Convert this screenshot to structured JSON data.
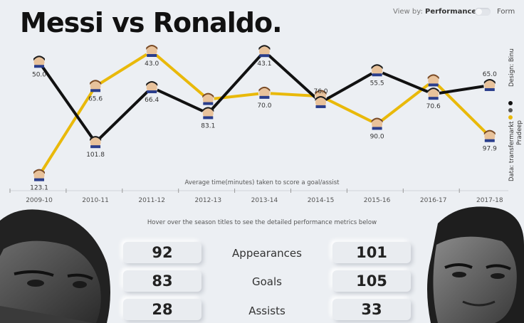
{
  "header": {
    "title": "Messi vs Ronaldo.",
    "view_by_label": "View by:",
    "option_performance": "Performance",
    "option_form": "Form"
  },
  "side": {
    "design": "Design: Binu",
    "data_source": "Data: transfermarkt",
    "legend": [
      {
        "name": "",
        "color": "#111111"
      },
      {
        "name": "Pradeep",
        "color": "#e9b90a"
      }
    ]
  },
  "colors": {
    "messi": "#e9b90a",
    "ronaldo": "#111111"
  },
  "chart_data": {
    "type": "line",
    "title": "Messi vs Ronaldo.",
    "xlabel": "Average time(minutes) taken to score a goal/assist",
    "ylabel": "",
    "y_inverted": true,
    "categories": [
      "2009-10",
      "2010-11",
      "2011-12",
      "2012-13",
      "2013-14",
      "2014-15",
      "2015-16",
      "2016-17",
      "2017-18"
    ],
    "series": [
      {
        "name": "",
        "color": "#111111",
        "values": [
          50.0,
          101.8,
          66.4,
          83.1,
          43.1,
          76.0,
          55.5,
          70.6,
          65.0
        ]
      },
      {
        "name": "",
        "color": "#e9b90a",
        "values": [
          123.1,
          65.6,
          43.0,
          null,
          70.0,
          null,
          90.0,
          null,
          97.9
        ]
      }
    ],
    "messi_hidden_points": [
      {
        "category": "2012-13",
        "value": 74
      },
      {
        "category": "2014-15",
        "value": 72
      },
      {
        "category": "2016-17",
        "value": 62
      }
    ]
  },
  "instructions": "Hover over the season titles to see the detailed performance metrics below",
  "stats": [
    {
      "label": "Appearances",
      "messi": "92",
      "ronaldo": "101"
    },
    {
      "label": "Goals",
      "messi": "83",
      "ronaldo": "105"
    },
    {
      "label": "Assists",
      "messi": "28",
      "ronaldo": "33"
    }
  ]
}
